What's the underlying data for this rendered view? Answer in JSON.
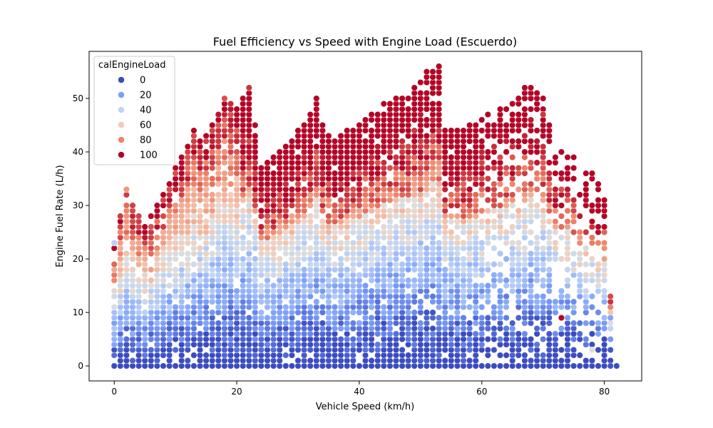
{
  "chart_data": {
    "type": "scatter",
    "title": "Fuel Efficiency vs Speed with Engine Load (Escuerdo)",
    "xlabel": "Vehicle Speed (km/h)",
    "ylabel": "Engine Fuel Rate (L/h)",
    "xlim": [
      -4.1,
      86.1
    ],
    "ylim": [
      -2.8,
      58.8
    ],
    "xticks": [
      0,
      20,
      40,
      60,
      80
    ],
    "yticks": [
      0,
      10,
      20,
      30,
      40,
      50
    ],
    "grid": false,
    "legend": {
      "title": "calEngineLoad",
      "placement": "upper-left",
      "entries": [
        {
          "label": "0",
          "color": "#3b4cc0"
        },
        {
          "label": "20",
          "color": "#7b9ff9"
        },
        {
          "label": "40",
          "color": "#c0d4f5"
        },
        {
          "label": "60",
          "color": "#f2cbb7"
        },
        {
          "label": "80",
          "color": "#ee8468"
        },
        {
          "label": "100",
          "color": "#b40426"
        }
      ]
    },
    "color_scale": {
      "variable": "calEngineLoad",
      "stops": [
        [
          0,
          "#3b4cc0"
        ],
        [
          20,
          "#7b9ff9"
        ],
        [
          40,
          "#c0d4f5"
        ],
        [
          50,
          "#dddddd"
        ],
        [
          60,
          "#f2cbb7"
        ],
        [
          80,
          "#ee8468"
        ],
        [
          100,
          "#b40426"
        ]
      ]
    },
    "envelope": {
      "description": "upper bound of observed fuel rate per speed",
      "speed": [
        0,
        2,
        5,
        8,
        10,
        12,
        13,
        14,
        16,
        18,
        19,
        20,
        22,
        24,
        26,
        28,
        30,
        32,
        33,
        34,
        36,
        38,
        40,
        42,
        44,
        46,
        48,
        50,
        52,
        53,
        54,
        56,
        58,
        60,
        62,
        64,
        66,
        67,
        68,
        70,
        72,
        74,
        76,
        78,
        80,
        82
      ],
      "max_rate": [
        23,
        33,
        26,
        32,
        37,
        41,
        44,
        42,
        45,
        50,
        49,
        48,
        52,
        38,
        39,
        41,
        44,
        47,
        50,
        45,
        42,
        44,
        45,
        47,
        49,
        50,
        51,
        53,
        55,
        56,
        44,
        44,
        45,
        46,
        48,
        48,
        50,
        51,
        52,
        50,
        41,
        41,
        37,
        36,
        32,
        1
      ]
    },
    "points": [
      {
        "x": 0,
        "y": 23,
        "load": 38
      },
      {
        "x": 2,
        "y": 33,
        "load": 75
      },
      {
        "x": 22,
        "y": 52,
        "load": 92
      },
      {
        "x": 18,
        "y": 50,
        "load": 88
      },
      {
        "x": 33,
        "y": 50,
        "load": 100
      },
      {
        "x": 53,
        "y": 56,
        "load": 100
      },
      {
        "x": 51,
        "y": 55,
        "load": 100
      },
      {
        "x": 67,
        "y": 52,
        "load": 100
      },
      {
        "x": 68,
        "y": 52,
        "load": 100
      },
      {
        "x": 70,
        "y": 50,
        "load": 100
      },
      {
        "x": 70,
        "y": 47,
        "load": 92
      },
      {
        "x": 73,
        "y": 9,
        "load": 100
      },
      {
        "x": 78,
        "y": 13,
        "load": 25
      },
      {
        "x": 80,
        "y": 7,
        "load": 20
      },
      {
        "x": 81,
        "y": 9,
        "load": 22
      },
      {
        "x": 81,
        "y": 0,
        "load": 2
      },
      {
        "x": 82,
        "y": 0,
        "load": 0
      },
      {
        "x": 78,
        "y": 3,
        "load": 50
      }
    ]
  }
}
